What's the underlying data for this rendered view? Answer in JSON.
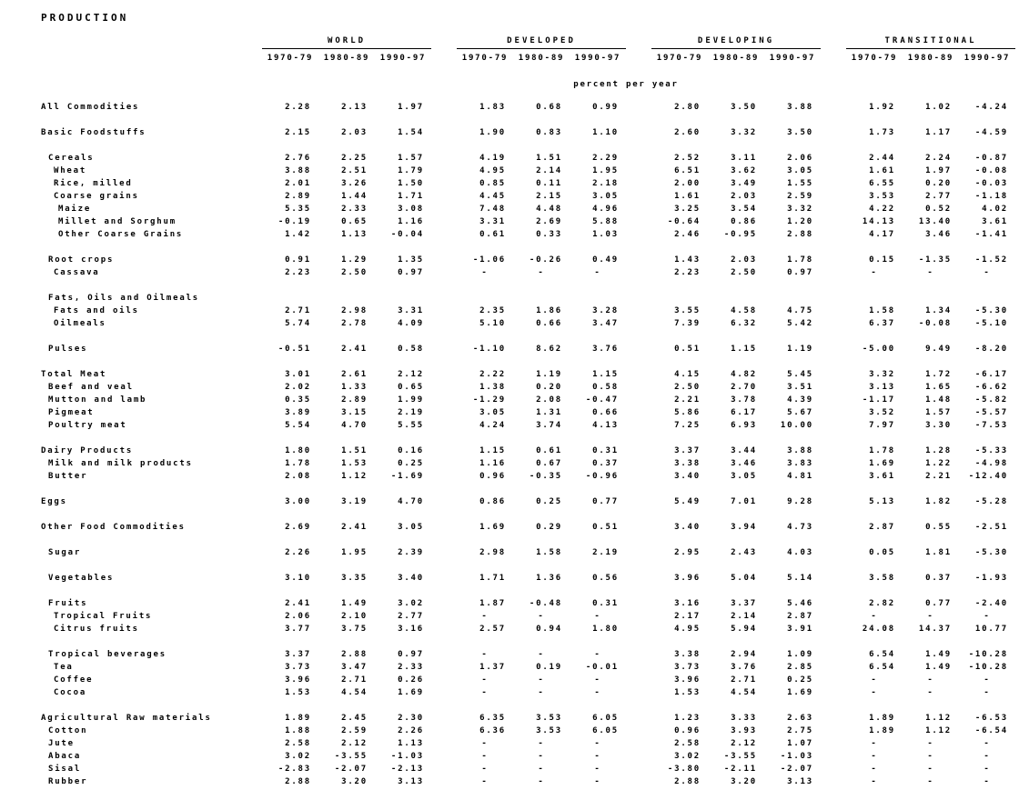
{
  "page": {
    "title": "PRODUCTION",
    "unit_label": "percent per year"
  },
  "table": {
    "groups": [
      "WORLD",
      "DEVELOPED",
      "DEVELOPING",
      "TRANSITIONAL"
    ],
    "periods": [
      "1970-79",
      "1980-89",
      "1990-97"
    ],
    "rows": [
      {
        "label": "All Commodities",
        "indent": 0,
        "values": [
          "2.28",
          "2.13",
          "1.97",
          "1.83",
          "0.68",
          "0.99",
          "2.80",
          "3.50",
          "3.88",
          "1.92",
          "1.02",
          "-4.24"
        ]
      },
      {
        "spacer": true
      },
      {
        "label": "Basic Foodstuffs",
        "indent": 0,
        "values": [
          "2.15",
          "2.03",
          "1.54",
          "1.90",
          "0.83",
          "1.10",
          "2.60",
          "3.32",
          "3.50",
          "1.73",
          "1.17",
          "-4.59"
        ]
      },
      {
        "spacer": true
      },
      {
        "label": "Cereals",
        "indent": 1,
        "values": [
          "2.76",
          "2.25",
          "1.57",
          "4.19",
          "1.51",
          "2.29",
          "2.52",
          "3.11",
          "2.06",
          "2.44",
          "2.24",
          "-0.87"
        ]
      },
      {
        "label": "Wheat",
        "indent": 2,
        "values": [
          "3.88",
          "2.51",
          "1.79",
          "4.95",
          "2.14",
          "1.95",
          "6.51",
          "3.62",
          "3.05",
          "1.61",
          "1.97",
          "-0.08"
        ]
      },
      {
        "label": "Rice, milled",
        "indent": 2,
        "values": [
          "2.01",
          "3.26",
          "1.50",
          "0.85",
          "0.11",
          "2.18",
          "2.00",
          "3.49",
          "1.55",
          "6.55",
          "0.20",
          "-0.03"
        ]
      },
      {
        "label": "Coarse grains",
        "indent": 2,
        "values": [
          "2.89",
          "1.44",
          "1.71",
          "4.45",
          "2.15",
          "3.05",
          "1.61",
          "2.03",
          "2.59",
          "3.53",
          "2.77",
          "-1.18"
        ]
      },
      {
        "label": "Maize",
        "indent": 3,
        "values": [
          "5.35",
          "2.33",
          "3.08",
          "7.48",
          "4.48",
          "4.96",
          "3.25",
          "3.54",
          "3.32",
          "4.22",
          "0.52",
          "4.02"
        ]
      },
      {
        "label": "Millet and Sorghum",
        "indent": 3,
        "values": [
          "-0.19",
          "0.65",
          "1.16",
          "3.31",
          "2.69",
          "5.88",
          "-0.64",
          "0.86",
          "1.20",
          "14.13",
          "13.40",
          "3.61"
        ]
      },
      {
        "label": "Other Coarse Grains",
        "indent": 3,
        "values": [
          "1.42",
          "1.13",
          "-0.04",
          "0.61",
          "0.33",
          "1.03",
          "2.46",
          "-0.95",
          "2.88",
          "4.17",
          "3.46",
          "-1.41"
        ]
      },
      {
        "spacer": true
      },
      {
        "label": "Root crops",
        "indent": 1,
        "values": [
          "0.91",
          "1.29",
          "1.35",
          "-1.06",
          "-0.26",
          "0.49",
          "1.43",
          "2.03",
          "1.78",
          "0.15",
          "-1.35",
          "-1.52"
        ]
      },
      {
        "label": "Cassava",
        "indent": 2,
        "values": [
          "2.23",
          "2.50",
          "0.97",
          "-",
          "-",
          "-",
          "2.23",
          "2.50",
          "0.97",
          "-",
          "-",
          "-"
        ]
      },
      {
        "spacer": true
      },
      {
        "label": "Fats, Oils and Oilmeals",
        "indent": 1,
        "values": [
          "",
          "",
          "",
          "",
          "",
          "",
          "",
          "",
          "",
          "",
          "",
          ""
        ]
      },
      {
        "label": "Fats and oils",
        "indent": 2,
        "values": [
          "2.71",
          "2.98",
          "3.31",
          "2.35",
          "1.86",
          "3.28",
          "3.55",
          "4.58",
          "4.75",
          "1.58",
          "1.34",
          "-5.30"
        ]
      },
      {
        "label": "Oilmeals",
        "indent": 2,
        "values": [
          "5.74",
          "2.78",
          "4.09",
          "5.10",
          "0.66",
          "3.47",
          "7.39",
          "6.32",
          "5.42",
          "6.37",
          "-0.08",
          "-5.10"
        ]
      },
      {
        "spacer": true
      },
      {
        "label": "Pulses",
        "indent": 1,
        "values": [
          "-0.51",
          "2.41",
          "0.58",
          "-1.10",
          "8.62",
          "3.76",
          "0.51",
          "1.15",
          "1.19",
          "-5.00",
          "9.49",
          "-8.20"
        ]
      },
      {
        "spacer": true
      },
      {
        "label": "Total Meat",
        "indent": 0,
        "values": [
          "3.01",
          "2.61",
          "2.12",
          "2.22",
          "1.19",
          "1.15",
          "4.15",
          "4.82",
          "5.45",
          "3.32",
          "1.72",
          "-6.17"
        ]
      },
      {
        "label": "Beef and veal",
        "indent": 1,
        "values": [
          "2.02",
          "1.33",
          "0.65",
          "1.38",
          "0.20",
          "0.58",
          "2.50",
          "2.70",
          "3.51",
          "3.13",
          "1.65",
          "-6.62"
        ]
      },
      {
        "label": "Mutton and lamb",
        "indent": 1,
        "values": [
          "0.35",
          "2.89",
          "1.99",
          "-1.29",
          "2.08",
          "-0.47",
          "2.21",
          "3.78",
          "4.39",
          "-1.17",
          "1.48",
          "-5.82"
        ]
      },
      {
        "label": "Pigmeat",
        "indent": 1,
        "values": [
          "3.89",
          "3.15",
          "2.19",
          "3.05",
          "1.31",
          "0.66",
          "5.86",
          "6.17",
          "5.67",
          "3.52",
          "1.57",
          "-5.57"
        ]
      },
      {
        "label": "Poultry meat",
        "indent": 1,
        "values": [
          "5.54",
          "4.70",
          "5.55",
          "4.24",
          "3.74",
          "4.13",
          "7.25",
          "6.93",
          "10.00",
          "7.97",
          "3.30",
          "-7.53"
        ]
      },
      {
        "spacer": true
      },
      {
        "label": "Dairy Products",
        "indent": 0,
        "values": [
          "1.80",
          "1.51",
          "0.16",
          "1.15",
          "0.61",
          "0.31",
          "3.37",
          "3.44",
          "3.88",
          "1.78",
          "1.28",
          "-5.33"
        ]
      },
      {
        "label": "Milk and milk products",
        "indent": 1,
        "values": [
          "1.78",
          "1.53",
          "0.25",
          "1.16",
          "0.67",
          "0.37",
          "3.38",
          "3.46",
          "3.83",
          "1.69",
          "1.22",
          "-4.98"
        ]
      },
      {
        "label": "Butter",
        "indent": 1,
        "values": [
          "2.08",
          "1.12",
          "-1.69",
          "0.96",
          "-0.35",
          "-0.96",
          "3.40",
          "3.05",
          "4.81",
          "3.61",
          "2.21",
          "-12.40"
        ]
      },
      {
        "spacer": true
      },
      {
        "label": "Eggs",
        "indent": 0,
        "values": [
          "3.00",
          "3.19",
          "4.70",
          "0.86",
          "0.25",
          "0.77",
          "5.49",
          "7.01",
          "9.28",
          "5.13",
          "1.82",
          "-5.28"
        ]
      },
      {
        "spacer": true
      },
      {
        "label": "Other Food Commodities",
        "indent": 0,
        "values": [
          "2.69",
          "2.41",
          "3.05",
          "1.69",
          "0.29",
          "0.51",
          "3.40",
          "3.94",
          "4.73",
          "2.87",
          "0.55",
          "-2.51"
        ]
      },
      {
        "spacer": true
      },
      {
        "label": "Sugar",
        "indent": 1,
        "values": [
          "2.26",
          "1.95",
          "2.39",
          "2.98",
          "1.58",
          "2.19",
          "2.95",
          "2.43",
          "4.03",
          "0.05",
          "1.81",
          "-5.30"
        ]
      },
      {
        "spacer": true
      },
      {
        "label": "Vegetables",
        "indent": 1,
        "values": [
          "3.10",
          "3.35",
          "3.40",
          "1.71",
          "1.36",
          "0.56",
          "3.96",
          "5.04",
          "5.14",
          "3.58",
          "0.37",
          "-1.93"
        ]
      },
      {
        "spacer": true
      },
      {
        "label": "Fruits",
        "indent": 1,
        "values": [
          "2.41",
          "1.49",
          "3.02",
          "1.87",
          "-0.48",
          "0.31",
          "3.16",
          "3.37",
          "5.46",
          "2.82",
          "0.77",
          "-2.40"
        ]
      },
      {
        "label": "Tropical Fruits",
        "indent": 2,
        "values": [
          "2.06",
          "2.10",
          "2.77",
          "-",
          "-",
          "-",
          "2.17",
          "2.14",
          "2.87",
          "-",
          "-",
          "-"
        ]
      },
      {
        "label": "Citrus fruits",
        "indent": 2,
        "values": [
          "3.77",
          "3.75",
          "3.16",
          "2.57",
          "0.94",
          "1.80",
          "4.95",
          "5.94",
          "3.91",
          "24.08",
          "14.37",
          "10.77"
        ]
      },
      {
        "spacer": true
      },
      {
        "label": "Tropical beverages",
        "indent": 1,
        "values": [
          "3.37",
          "2.88",
          "0.97",
          "-",
          "-",
          "-",
          "3.38",
          "2.94",
          "1.09",
          "6.54",
          "1.49",
          "-10.28"
        ]
      },
      {
        "label": "Tea",
        "indent": 2,
        "values": [
          "3.73",
          "3.47",
          "2.33",
          "1.37",
          "0.19",
          "-0.01",
          "3.73",
          "3.76",
          "2.85",
          "6.54",
          "1.49",
          "-10.28"
        ]
      },
      {
        "label": "Coffee",
        "indent": 2,
        "values": [
          "3.96",
          "2.71",
          "0.26",
          "-",
          "-",
          "-",
          "3.96",
          "2.71",
          "0.25",
          "-",
          "-",
          "-"
        ]
      },
      {
        "label": "Cocoa",
        "indent": 2,
        "values": [
          "1.53",
          "4.54",
          "1.69",
          "-",
          "-",
          "-",
          "1.53",
          "4.54",
          "1.69",
          "-",
          "-",
          "-"
        ]
      },
      {
        "spacer": true
      },
      {
        "label": "Agricultural Raw materials",
        "indent": 0,
        "values": [
          "1.89",
          "2.45",
          "2.30",
          "6.35",
          "3.53",
          "6.05",
          "1.23",
          "3.33",
          "2.63",
          "1.89",
          "1.12",
          "-6.53"
        ]
      },
      {
        "label": "Cotton",
        "indent": 1,
        "values": [
          "1.88",
          "2.59",
          "2.26",
          "6.36",
          "3.53",
          "6.05",
          "0.96",
          "3.93",
          "2.75",
          "1.89",
          "1.12",
          "-6.54"
        ]
      },
      {
        "label": "Jute",
        "indent": 1,
        "values": [
          "2.58",
          "2.12",
          "1.13",
          "-",
          "-",
          "-",
          "2.58",
          "2.12",
          "1.07",
          "-",
          "-",
          "-"
        ]
      },
      {
        "label": "Abaca",
        "indent": 1,
        "values": [
          "3.02",
          "-3.55",
          "-1.03",
          "-",
          "-",
          "-",
          "3.02",
          "-3.55",
          "-1.03",
          "-",
          "-",
          "-"
        ]
      },
      {
        "label": "Sisal",
        "indent": 1,
        "values": [
          "-2.83",
          "-2.07",
          "-2.13",
          "-",
          "-",
          "-",
          "-3.80",
          "-2.11",
          "-2.07",
          "-",
          "-",
          "-"
        ]
      },
      {
        "label": "Rubber",
        "indent": 1,
        "values": [
          "2.88",
          "3.20",
          "3.13",
          "-",
          "-",
          "-",
          "2.88",
          "3.20",
          "3.13",
          "-",
          "-",
          "-"
        ]
      }
    ]
  }
}
